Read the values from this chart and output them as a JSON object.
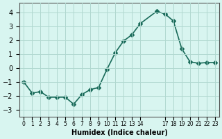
{
  "x": [
    0,
    1,
    2,
    3,
    4,
    5,
    6,
    7,
    8,
    9,
    10,
    11,
    12,
    13,
    14,
    16,
    17,
    18,
    19,
    20,
    21,
    22,
    23
  ],
  "y": [
    -1.0,
    -1.8,
    -1.7,
    -2.1,
    -2.1,
    -2.1,
    -2.6,
    -1.9,
    -1.55,
    -1.4,
    -0.1,
    1.1,
    1.95,
    2.4,
    3.2,
    4.1,
    3.9,
    3.4,
    1.4,
    0.45,
    0.35,
    0.4,
    0.4
  ],
  "line_color": "#1a6b5a",
  "marker": "D",
  "marker_size": 3,
  "bg_color": "#d8f5f0",
  "grid_color": "#b0d8d0",
  "xlabel": "Humidex (Indice chaleur)",
  "xlim": [
    -0.5,
    23.5
  ],
  "ylim": [
    -3.5,
    4.7
  ],
  "yticks": [
    -3,
    -2,
    -1,
    0,
    1,
    2,
    3,
    4
  ],
  "xtick_positions": [
    0,
    1,
    2,
    3,
    4,
    5,
    6,
    7,
    8,
    9,
    10,
    11,
    12,
    13,
    14,
    17,
    18,
    19,
    20,
    21,
    22,
    23
  ],
  "xtick_labels": [
    "0",
    "1",
    "2",
    "3",
    "4",
    "5",
    "6",
    "7",
    "8",
    "9",
    "10",
    "11",
    "12",
    "13",
    "14",
    "17",
    "18",
    "19",
    "20",
    "21",
    "22",
    "23"
  ]
}
